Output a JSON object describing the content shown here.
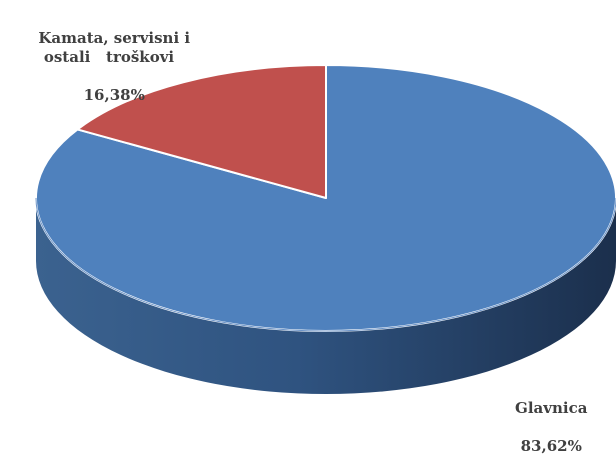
{
  "chart_data": {
    "type": "pie",
    "style": "3d",
    "title": "",
    "slices": [
      {
        "label": "Glavnica",
        "value": 83.62,
        "display": "83,62%",
        "color": "#4f81bd",
        "side_color": "#2c4a6e"
      },
      {
        "label": "Kamata, servisni i\nostali   troškovi",
        "value": 16.38,
        "display": "16,38%",
        "color": "#c0504d",
        "side_color": "#7d2e2c"
      }
    ],
    "legend": "none",
    "data_labels": "outside"
  }
}
